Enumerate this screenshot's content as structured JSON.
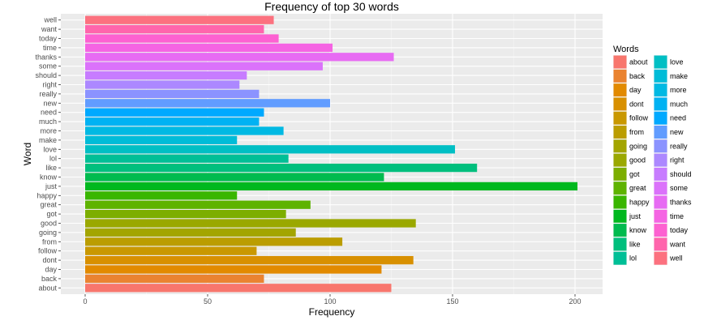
{
  "chart_data": {
    "type": "bar",
    "orientation": "horizontal",
    "title": "Frequency of top 30 words",
    "xlabel": "Frequency",
    "ylabel": "Word",
    "xlim": [
      0,
      210
    ],
    "xticks": [
      0,
      50,
      100,
      150,
      200
    ],
    "grid": true,
    "legend_title": "Words",
    "legend_placement": "right",
    "categories": [
      "about",
      "back",
      "day",
      "dont",
      "follow",
      "from",
      "going",
      "good",
      "got",
      "great",
      "happy",
      "just",
      "know",
      "like",
      "lol",
      "love",
      "make",
      "more",
      "much",
      "need",
      "new",
      "really",
      "right",
      "should",
      "some",
      "thanks",
      "time",
      "today",
      "want",
      "well"
    ],
    "values": [
      125,
      73,
      121,
      134,
      70,
      105,
      86,
      135,
      82,
      92,
      62,
      201,
      122,
      160,
      83,
      151,
      62,
      81,
      71,
      73,
      100,
      71,
      63,
      66,
      97,
      126,
      101,
      79,
      73,
      77
    ],
    "colors": [
      "#F8766D",
      "#EA8331",
      "#E28A00",
      "#D89000",
      "#C99800",
      "#BB9D00",
      "#A3A500",
      "#9AA800",
      "#7CAE00",
      "#5EB300",
      "#39B600",
      "#00B81F",
      "#00BB4E",
      "#00BF7D",
      "#00BF96",
      "#00BFC4",
      "#00BCD8",
      "#00B9E3",
      "#00B2F3",
      "#00A9FF",
      "#619CFF",
      "#8B93FF",
      "#AC88FF",
      "#C77CFF",
      "#DB72FB",
      "#E76BF3",
      "#F564E3",
      "#FD61D1",
      "#FF65AC",
      "#FC717F"
    ]
  }
}
